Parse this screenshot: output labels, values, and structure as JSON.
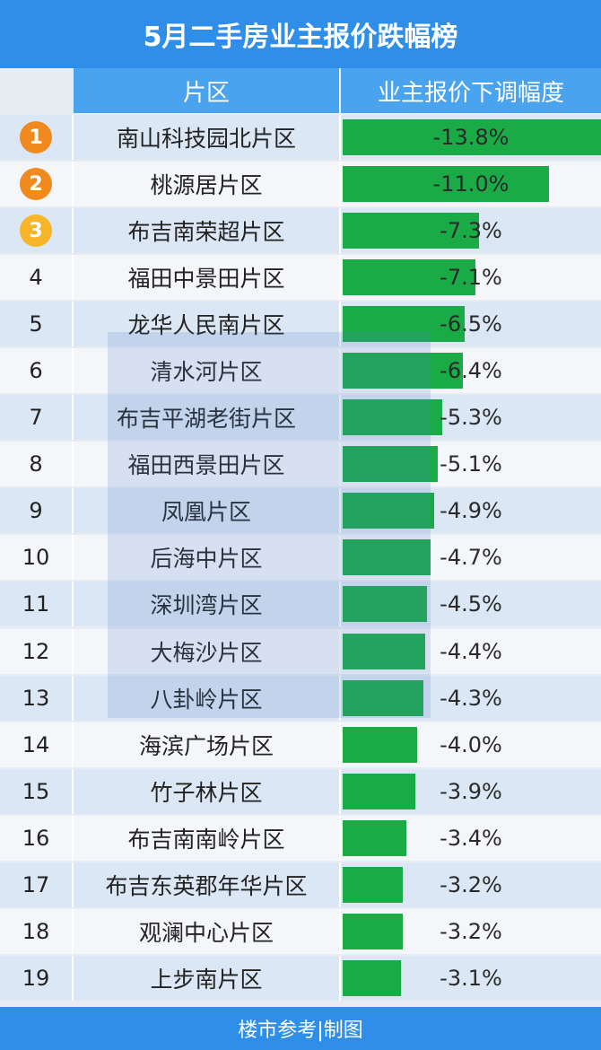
{
  "title": "5月二手房业主报价跌幅榜",
  "headers": {
    "area": "片区",
    "value": "业主报价下调幅度"
  },
  "footer": "楼市参考|制图",
  "colors": {
    "header_blue": "#2f8fe8",
    "bar_green": "#1aab47",
    "medal_orange": "#f08a1e",
    "medal_gold": "#f7b52a"
  },
  "chart_data": {
    "type": "bar",
    "orientation": "horizontal",
    "categories": [
      "南山科技园北片区",
      "桃源居片区",
      "布吉南荣超片区",
      "福田中景田片区",
      "龙华人民南片区",
      "清水河片区",
      "布吉平湖老街片区",
      "福田西景田片区",
      "凤凰片区",
      "后海中片区",
      "深圳湾片区",
      "大梅沙片区",
      "八卦岭片区",
      "海滨广场片区",
      "竹子林片区",
      "布吉南南岭片区",
      "布吉东英郡年华片区",
      "观澜中心片区",
      "上步南片区"
    ],
    "ranks": [
      "1",
      "2",
      "3",
      "4",
      "5",
      "6",
      "7",
      "8",
      "9",
      "10",
      "11",
      "12",
      "13",
      "14",
      "15",
      "16",
      "17",
      "18",
      "19"
    ],
    "labels": [
      "-13.8%",
      "-11.0%",
      "-7.3%",
      "-7.1%",
      "-6.5%",
      "-6.4%",
      "-5.3%",
      "-5.1%",
      "-4.9%",
      "-4.7%",
      "-4.5%",
      "-4.4%",
      "-4.3%",
      "-4.0%",
      "-3.9%",
      "-3.4%",
      "-3.2%",
      "-3.2%",
      "-3.1%"
    ],
    "values": [
      -13.8,
      -11.0,
      -7.3,
      -7.1,
      -6.5,
      -6.4,
      -5.3,
      -5.1,
      -4.9,
      -4.7,
      -4.5,
      -4.4,
      -4.3,
      -4.0,
      -3.9,
      -3.4,
      -3.2,
      -3.2,
      -3.1
    ],
    "title": "5月二手房业主报价跌幅榜",
    "xlabel": "",
    "ylabel": ""
  }
}
